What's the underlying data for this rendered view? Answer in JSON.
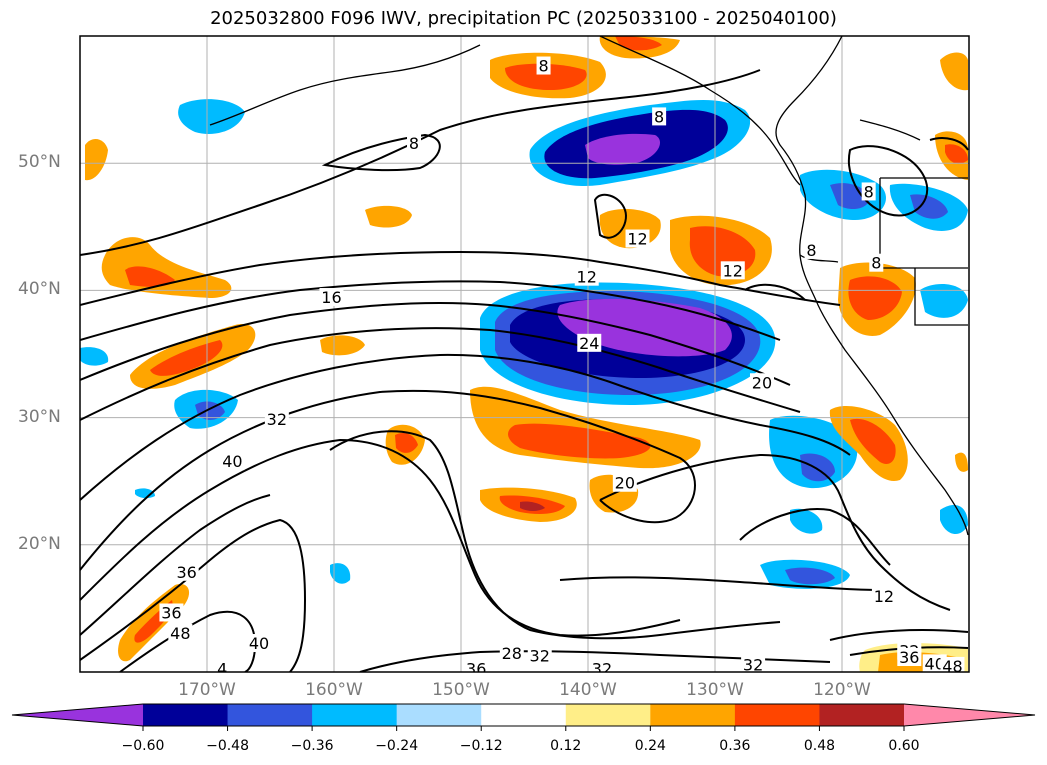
{
  "title": "2025032800 F096 IWV, precipitation PC (2025033100 - 2025040100)",
  "map": {
    "lon_range": [
      -180,
      -110
    ],
    "lat_range": [
      10,
      60
    ],
    "lat_labels": [
      {
        "lat": 50,
        "text": "50°N"
      },
      {
        "lat": 40,
        "text": "40°N"
      },
      {
        "lat": 30,
        "text": "30°N"
      },
      {
        "lat": 20,
        "text": "20°N"
      }
    ],
    "lon_labels": [
      {
        "lon": -170,
        "text": "170°W"
      },
      {
        "lon": -160,
        "text": "160°W"
      },
      {
        "lon": -150,
        "text": "150°W"
      },
      {
        "lon": -140,
        "text": "140°W"
      },
      {
        "lon": -130,
        "text": "130°W"
      },
      {
        "lon": -120,
        "text": "120°W"
      }
    ],
    "gridlines": true,
    "contour_labels": [
      {
        "text": "8",
        "lon": -153.7,
        "lat": 51.5
      },
      {
        "text": "8",
        "lon": -134.4,
        "lat": 53.6
      },
      {
        "text": "8",
        "lon": -143.5,
        "lat": 57.6
      },
      {
        "text": "8",
        "lon": -117.9,
        "lat": 47.7
      },
      {
        "text": "8",
        "lon": -122.4,
        "lat": 43.1
      },
      {
        "text": "8",
        "lon": -117.3,
        "lat": 42.1
      },
      {
        "text": "12",
        "lon": -140.1,
        "lat": 41.0
      },
      {
        "text": "12",
        "lon": -128.6,
        "lat": 41.5
      },
      {
        "text": "12",
        "lon": -136.1,
        "lat": 44.0
      },
      {
        "text": "16",
        "lon": -160.2,
        "lat": 39.4
      },
      {
        "text": "24",
        "lon": -139.9,
        "lat": 35.8
      },
      {
        "text": "20",
        "lon": -126.3,
        "lat": 32.7
      },
      {
        "text": "32",
        "lon": -164.5,
        "lat": 29.8
      },
      {
        "text": "40",
        "lon": -168.0,
        "lat": 26.5
      },
      {
        "text": "20",
        "lon": -137.1,
        "lat": 24.8
      },
      {
        "text": "36",
        "lon": -171.6,
        "lat": 17.8
      },
      {
        "text": "36",
        "lon": -172.8,
        "lat": 14.6
      },
      {
        "text": "48",
        "lon": -172.1,
        "lat": 13.0
      },
      {
        "text": "40",
        "lon": -165.9,
        "lat": 12.2
      },
      {
        "text": "4",
        "lon": -168.8,
        "lat": 10.2
      },
      {
        "text": "36",
        "lon": -148.8,
        "lat": 10.2
      },
      {
        "text": "32",
        "lon": -143.8,
        "lat": 11.2
      },
      {
        "text": "28",
        "lon": -146.0,
        "lat": 11.4
      },
      {
        "text": "32",
        "lon": -138.9,
        "lat": 10.2
      },
      {
        "text": "32",
        "lon": -127.0,
        "lat": 10.5
      },
      {
        "text": "12",
        "lon": -116.7,
        "lat": 15.9
      },
      {
        "text": "32",
        "lon": -114.7,
        "lat": 11.6
      },
      {
        "text": "36",
        "lon": -114.7,
        "lat": 11.1
      },
      {
        "text": "40",
        "lon": -112.7,
        "lat": 10.6
      },
      {
        "text": "48",
        "lon": -111.3,
        "lat": 10.4
      }
    ]
  },
  "colorbar": {
    "boundaries": [
      -0.6,
      -0.48,
      -0.36,
      -0.24,
      -0.12,
      0.12,
      0.24,
      0.36,
      0.48,
      0.6
    ],
    "labels": [
      "−0.60",
      "−0.48",
      "−0.36",
      "−0.24",
      "−0.12",
      "0.12",
      "0.24",
      "0.36",
      "0.48",
      "0.60"
    ],
    "colors": [
      "#9933dd",
      "#000099",
      "#3355dd",
      "#00bbff",
      "#aaddff",
      "#ffffff",
      "#ffee88",
      "#ffa500",
      "#ff4500",
      "#b22222",
      "#ff88aa"
    ],
    "extend": "both"
  }
}
